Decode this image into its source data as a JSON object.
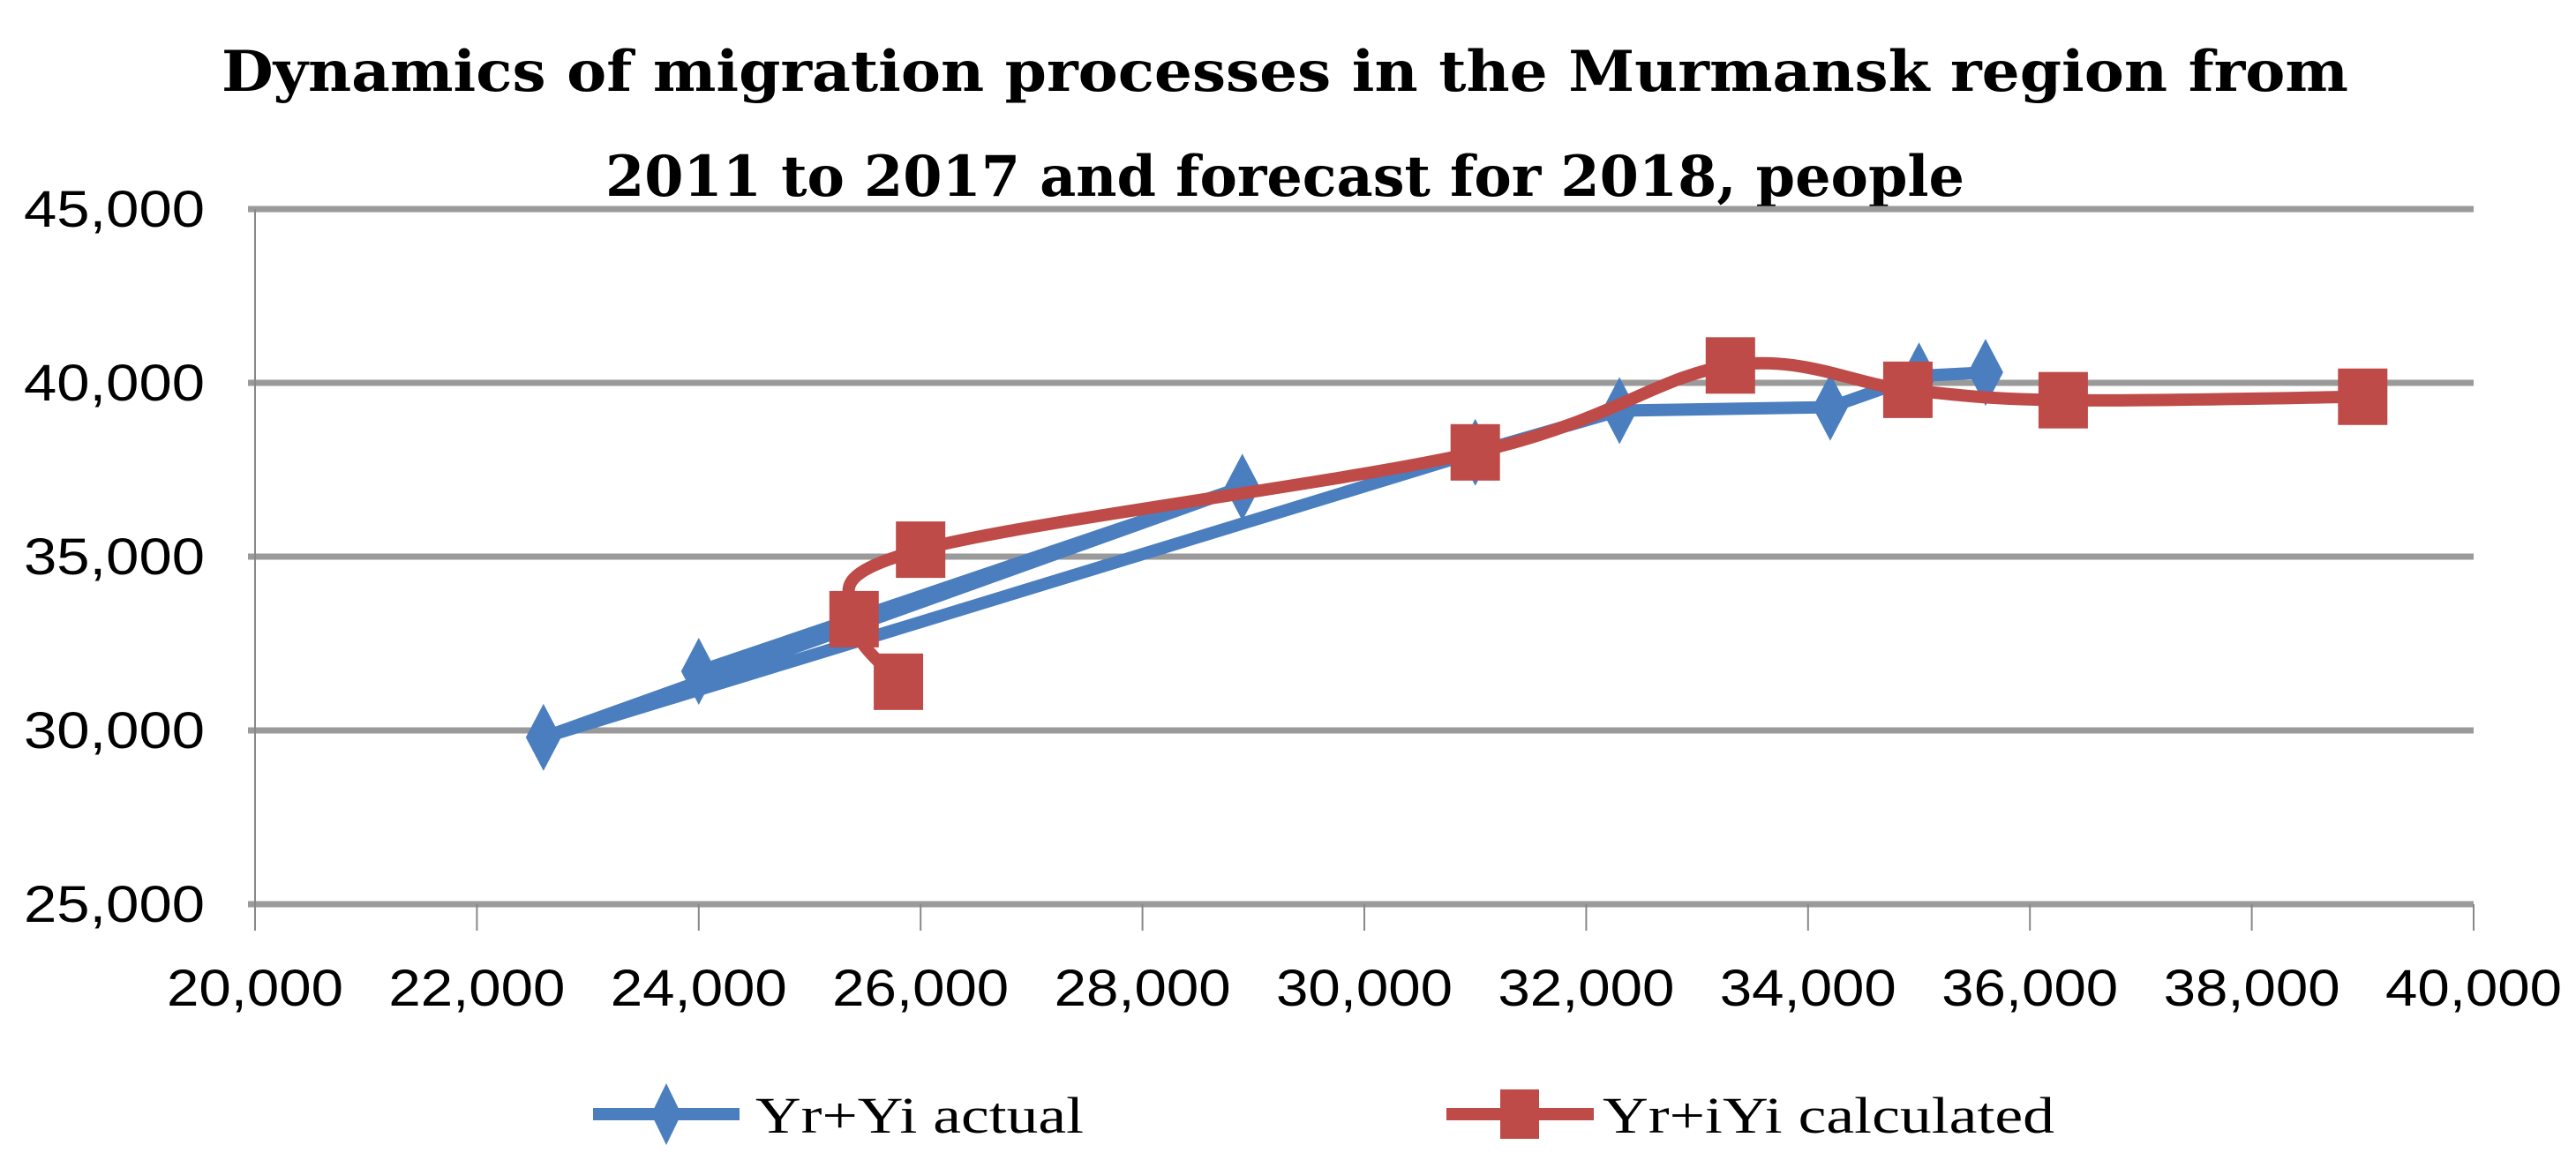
{
  "chart_data": {
    "type": "scatter",
    "title_lines": [
      "Dynamics of migration processes in the Murmansk region from",
      "2011 to 2017 and forecast for 2018, people"
    ],
    "xlabel": "",
    "ylabel": "",
    "xlim": [
      20000,
      40000
    ],
    "ylim": [
      25000,
      45000
    ],
    "x_ticks": [
      "20,000",
      "22,000",
      "24,000",
      "26,000",
      "28,000",
      "30,000",
      "32,000",
      "34,000",
      "36,000",
      "38,000",
      "40,000"
    ],
    "y_ticks": [
      "45,000",
      "40,000",
      "35,000",
      "30,000",
      "25,000"
    ],
    "x_tick_values": [
      20000,
      22000,
      24000,
      26000,
      28000,
      30000,
      32000,
      34000,
      36000,
      38000,
      40000
    ],
    "y_tick_values": [
      45000,
      40000,
      35000,
      30000,
      25000
    ],
    "grid": "horizontal",
    "legend_position": "bottom",
    "series": [
      {
        "name": "Yr+Yi actual",
        "color": "#4a7ebf",
        "marker": "diamond",
        "smooth": false,
        "points": [
          [
            24000,
            31700
          ],
          [
            28900,
            37000
          ],
          [
            22600,
            29800
          ],
          [
            31000,
            38000
          ],
          [
            32300,
            39200
          ],
          [
            34200,
            39300
          ],
          [
            35000,
            40200
          ],
          [
            35600,
            40300
          ]
        ]
      },
      {
        "name": "Yr+iYi calculated",
        "color": "#be4b48",
        "marker": "square",
        "smooth": true,
        "points": [
          [
            25800,
            31400
          ],
          [
            25400,
            33200
          ],
          [
            26000,
            35200
          ],
          [
            31000,
            38000
          ],
          [
            33300,
            40500
          ],
          [
            34900,
            39800
          ],
          [
            36300,
            39500
          ],
          [
            39000,
            39600
          ]
        ]
      }
    ]
  }
}
